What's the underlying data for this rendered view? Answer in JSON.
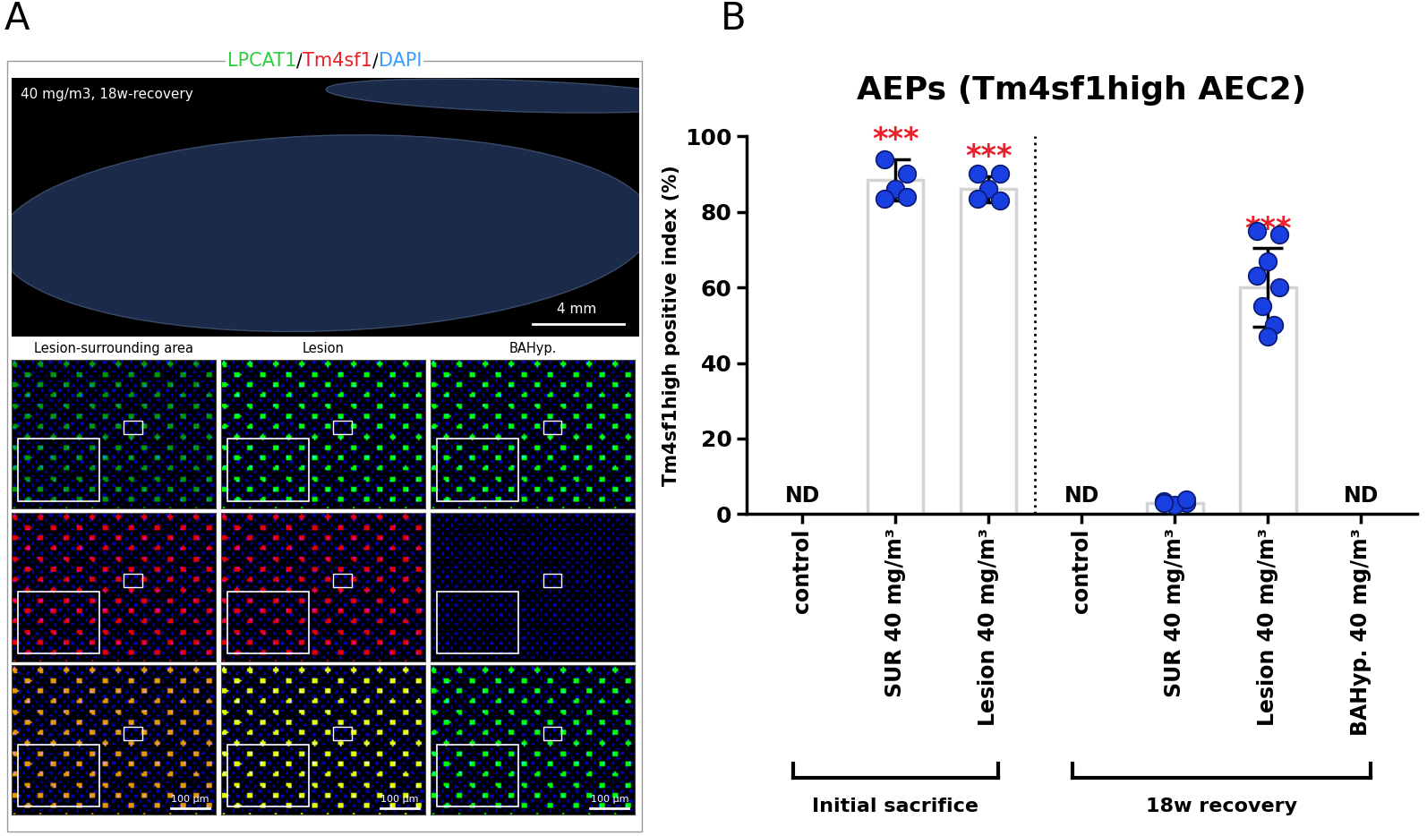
{
  "panel_letters": [
    "A",
    "B"
  ],
  "image_panel": {
    "stain_channels": [
      {
        "name": "LPCAT1",
        "color": "#2ecc40"
      },
      {
        "name": "Tm4sf1",
        "color": "#e8202a"
      },
      {
        "name": "DAPI",
        "color": "#3b9cff"
      }
    ],
    "separator": "/",
    "overview_label": "40 mg/m3, 18w-recovery",
    "overview_scale": "4 mm",
    "columns": [
      "Lesion-surrounding area",
      "Lesion",
      "BAHyp."
    ],
    "detail_scale": "100 μm"
  },
  "chart_data": {
    "type": "bar",
    "title": "AEPs (Tm4sf1high AEC2)",
    "y_label": "Tm4sf1high positive index (%)",
    "categories": [
      "control",
      "SUR 40 mg/m³",
      "Lesion 40 mg/m³",
      "control",
      "SUR 40 mg/m³",
      "Lesion 40 mg/m³",
      "BAHyp. 40 mg/m³"
    ],
    "values": [
      null,
      88.5,
      86,
      null,
      3,
      60,
      null
    ],
    "value_labels": [
      "ND",
      null,
      null,
      "ND",
      null,
      null,
      "ND"
    ],
    "errors": [
      null,
      5.5,
      3.5,
      null,
      0.6,
      10.5,
      null
    ],
    "points": [
      null,
      [
        94,
        90,
        86,
        83.5,
        84
      ],
      [
        90,
        90,
        86,
        83.5,
        83
      ],
      null,
      [
        3.5,
        3,
        2.5,
        3,
        3.8
      ],
      [
        75,
        74,
        67,
        63,
        60,
        55,
        50,
        47
      ],
      null
    ],
    "significance": [
      null,
      "***",
      "***",
      null,
      null,
      "***",
      null
    ],
    "groups": [
      {
        "label": "Initial sacrifice",
        "size": 3
      },
      {
        "label": "18w recovery",
        "size": 4
      }
    ],
    "color": "#ffffff",
    "ylim": [
      0,
      100
    ],
    "yticks": [
      0,
      20,
      40,
      60,
      80,
      100
    ],
    "grid": false
  }
}
